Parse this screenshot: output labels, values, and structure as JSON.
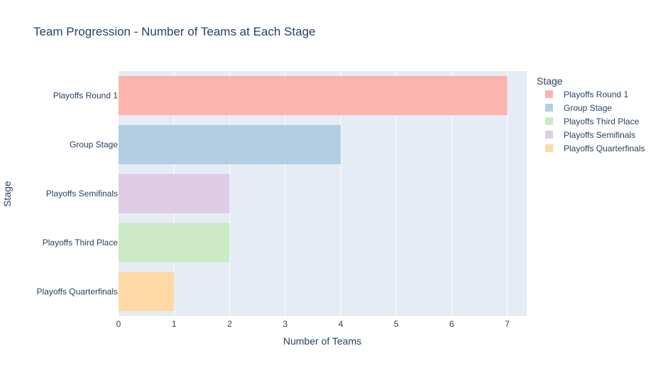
{
  "chart_data": {
    "type": "bar",
    "orientation": "horizontal",
    "title": "Team Progression - Number of Teams at Each Stage",
    "xlabel": "Number of Teams",
    "ylabel": "Stage",
    "xlim": [
      0,
      7.35
    ],
    "xticks": [
      0,
      1,
      2,
      3,
      4,
      5,
      6,
      7
    ],
    "grid": true,
    "legend": {
      "title": "Stage",
      "placement": "right",
      "entries": [
        {
          "name": "Playoffs Round 1",
          "color": "#FBB4AE"
        },
        {
          "name": "Group Stage",
          "color": "#B3CDE3"
        },
        {
          "name": "Playoffs Third Place",
          "color": "#CCEBC5"
        },
        {
          "name": "Playoffs Semifinals",
          "color": "#DECBE4"
        },
        {
          "name": "Playoffs Quarterfinals",
          "color": "#FED9A6"
        }
      ]
    },
    "bars": [
      {
        "category": "Playoffs Round 1",
        "value": 7,
        "color": "#FBB4AE"
      },
      {
        "category": "Group Stage",
        "value": 4,
        "color": "#B3CDE3"
      },
      {
        "category": "Playoffs Semifinals",
        "value": 2,
        "color": "#DECBE4"
      },
      {
        "category": "Playoffs Third Place",
        "value": 2,
        "color": "#CCEBC5"
      },
      {
        "category": "Playoffs Quarterfinals",
        "value": 1,
        "color": "#FED9A6"
      }
    ]
  },
  "colors": {
    "plot_background": "#E5ECF6",
    "gridline": "#FFFFFF",
    "text": "#2A3F5F"
  }
}
